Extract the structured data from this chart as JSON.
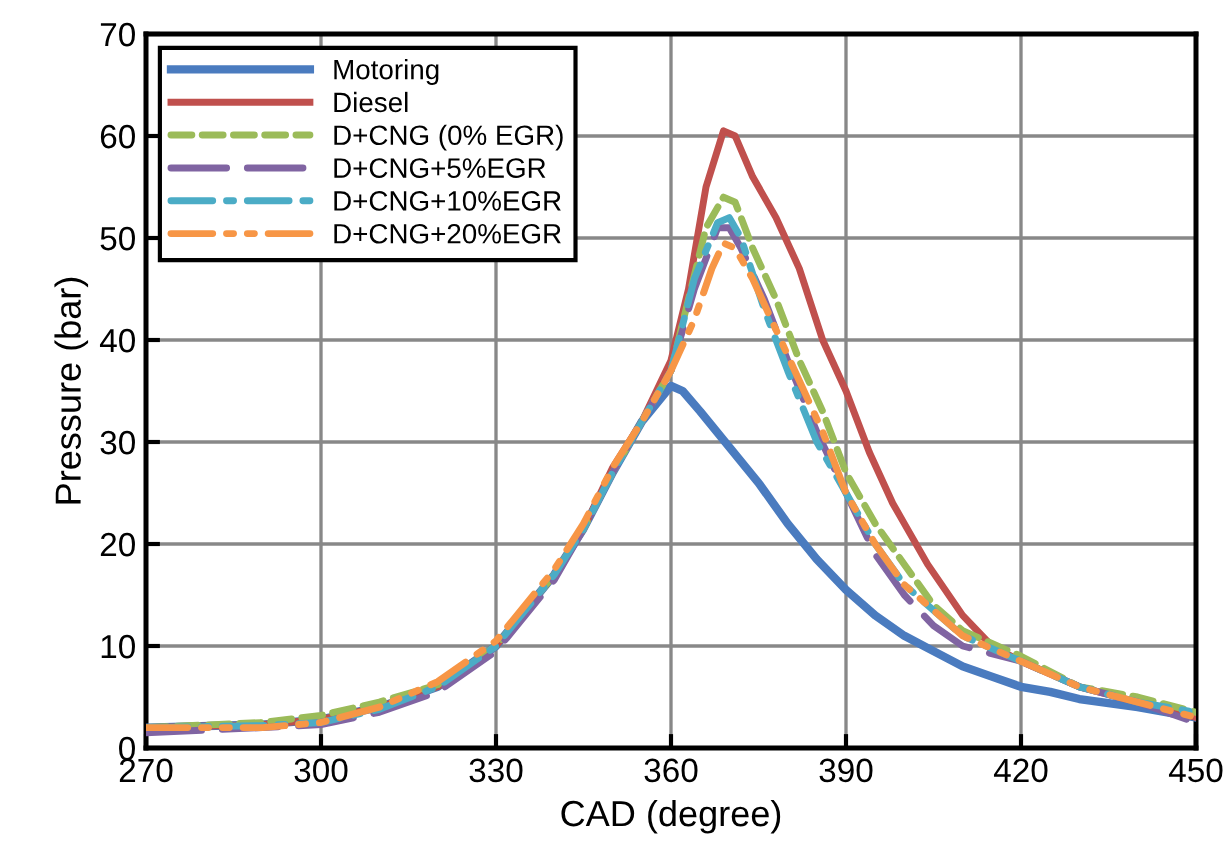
{
  "chart_data": {
    "type": "line",
    "xlabel": "CAD (degree)",
    "ylabel": "Pressure (bar)",
    "xlim": [
      270,
      450
    ],
    "ylim": [
      0,
      70
    ],
    "xticks": [
      270,
      300,
      330,
      360,
      390,
      420,
      450
    ],
    "yticks": [
      0,
      10,
      20,
      30,
      40,
      50,
      60,
      70
    ],
    "grid": true,
    "legend": "top left",
    "marker": "none",
    "series": [
      {
        "name": "Motoring",
        "color": "#4a7bbf",
        "line_style": "solid",
        "x": [
          270,
          290,
          300,
          310,
          320,
          330,
          340,
          345,
          350,
          355,
          360,
          362,
          365,
          370,
          375,
          380,
          385,
          390,
          395,
          400,
          405,
          410,
          415,
          420,
          425,
          430,
          440,
          450
        ],
        "values": [
          2,
          2.3,
          2.8,
          4,
          6,
          10,
          17,
          21.5,
          27,
          32,
          35.5,
          35,
          33,
          29.5,
          26,
          22,
          18.5,
          15.5,
          13,
          11,
          9.5,
          8,
          7,
          6,
          5.5,
          4.8,
          4,
          3
        ]
      },
      {
        "name": "Diesel",
        "color": "#c0504d",
        "line_style": "solid",
        "x": [
          270,
          290,
          300,
          310,
          320,
          330,
          340,
          345,
          350,
          355,
          360,
          363,
          366,
          369,
          371,
          374,
          378,
          382,
          386,
          390,
          394,
          398,
          400,
          404,
          410,
          415,
          420,
          430,
          440,
          450
        ],
        "values": [
          2,
          2.3,
          2.8,
          4,
          6,
          10,
          17,
          21.5,
          27.5,
          32,
          38,
          45,
          55,
          60.5,
          60,
          56,
          52,
          47,
          40,
          35,
          29,
          24,
          22,
          18,
          13,
          10,
          8.5,
          6,
          4.5,
          3
        ]
      },
      {
        "name": "D+CNG (0% EGR)",
        "color": "#9bbb59",
        "line_style": "dashed",
        "x": [
          270,
          290,
          300,
          310,
          320,
          330,
          340,
          345,
          350,
          355,
          360,
          363,
          366,
          369,
          371,
          374,
          378,
          382,
          386,
          390,
          395,
          400,
          405,
          410,
          420,
          430,
          440,
          450
        ],
        "values": [
          2,
          2.5,
          3.2,
          4.5,
          6.2,
          10,
          17,
          21.5,
          27,
          32,
          37,
          44,
          51,
          54,
          53.5,
          49,
          44,
          38,
          33,
          27,
          22,
          18,
          14,
          11.5,
          9,
          6,
          5,
          3.5
        ]
      },
      {
        "name": "D+CNG+5%EGR",
        "color": "#8064a2",
        "line_style": "longdash",
        "x": [
          270,
          290,
          300,
          310,
          320,
          330,
          340,
          345,
          350,
          355,
          360,
          364,
          368,
          370,
          372,
          376,
          380,
          385,
          390,
          395,
          400,
          405,
          410,
          420,
          430,
          440,
          450
        ],
        "values": [
          1.5,
          2,
          2.3,
          3.5,
          5.5,
          9.5,
          16.5,
          21.5,
          27,
          32,
          37,
          45,
          51,
          51,
          49,
          44,
          38,
          31,
          25,
          19,
          15,
          12,
          10,
          8.5,
          6,
          4.5,
          2.5
        ]
      },
      {
        "name": "D+CNG+10%EGR",
        "color": "#4bacc6",
        "line_style": "dashdot",
        "x": [
          270,
          290,
          300,
          310,
          320,
          330,
          340,
          345,
          350,
          355,
          360,
          364,
          368,
          370,
          372,
          376,
          380,
          385,
          390,
          395,
          400,
          410,
          420,
          430,
          440,
          450
        ],
        "values": [
          2,
          2.2,
          2.5,
          3.8,
          6,
          10,
          17,
          21.5,
          27,
          32,
          37,
          46,
          51.5,
          52,
          50,
          43,
          37,
          30,
          25,
          20,
          16,
          11,
          8.5,
          6,
          4.5,
          3.5
        ]
      },
      {
        "name": "D+CNG+20%EGR",
        "color": "#f79646",
        "line_style": "dashdotdot",
        "x": [
          270,
          290,
          300,
          310,
          320,
          330,
          340,
          345,
          350,
          355,
          360,
          364,
          367,
          369,
          371,
          374,
          378,
          382,
          386,
          390,
          395,
          400,
          410,
          420,
          430,
          440,
          450
        ],
        "values": [
          2,
          2,
          2.5,
          4,
          6.5,
          10.5,
          17.5,
          22,
          27.5,
          32,
          37,
          42,
          47,
          49.5,
          49,
          46,
          41,
          36,
          31,
          25,
          20,
          16,
          11,
          8.5,
          6,
          4.5,
          3
        ]
      }
    ]
  }
}
